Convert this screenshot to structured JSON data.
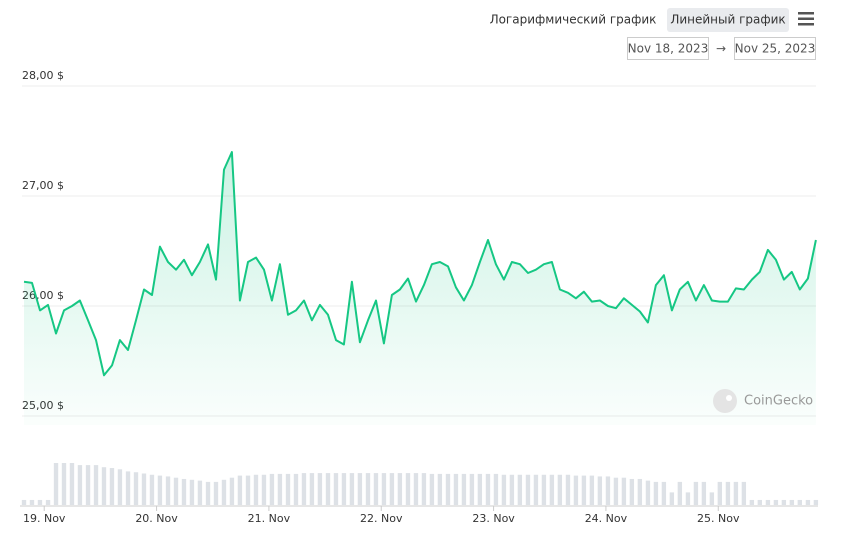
{
  "controls": {
    "log_button": "Логарифмический график",
    "linear_button": "Линейный график",
    "date_from": "Nov 18, 2023",
    "date_arrow": "→",
    "date_to": "Nov 25, 2023"
  },
  "chart_data": {
    "type": "line",
    "watermark": "CoinGecko",
    "x": [
      18.82,
      18.891,
      18.962,
      19.034,
      19.105,
      19.176,
      19.247,
      19.318,
      19.39,
      19.461,
      19.532,
      19.603,
      19.674,
      19.746,
      19.817,
      19.888,
      19.959,
      20.03,
      20.102,
      20.173,
      20.244,
      20.315,
      20.386,
      20.458,
      20.529,
      20.6,
      20.671,
      20.742,
      20.814,
      20.885,
      20.956,
      21.027,
      21.098,
      21.17,
      21.241,
      21.312,
      21.383,
      21.454,
      21.526,
      21.597,
      21.668,
      21.739,
      21.81,
      21.882,
      21.953,
      22.024,
      22.095,
      22.166,
      22.238,
      22.309,
      22.38,
      22.451,
      22.522,
      22.594,
      22.665,
      22.736,
      22.807,
      22.878,
      22.95,
      23.021,
      23.092,
      23.163,
      23.234,
      23.306,
      23.377,
      23.448,
      23.519,
      23.59,
      23.662,
      23.733,
      23.804,
      23.875,
      23.946,
      24.018,
      24.089,
      24.16,
      24.231,
      24.302,
      24.374,
      24.445,
      24.516,
      24.587,
      24.658,
      24.73,
      24.801,
      24.872,
      24.943,
      25.014,
      25.086,
      25.157,
      25.228,
      25.299,
      25.37,
      25.442,
      25.513,
      25.584,
      25.655,
      25.726,
      25.798,
      25.869
    ],
    "series": [
      {
        "color": "#16c784",
        "values": [
          26.22,
          26.21,
          25.96,
          26.01,
          25.75,
          25.96,
          26.0,
          26.05,
          25.87,
          25.69,
          25.37,
          25.46,
          25.69,
          25.6,
          25.87,
          26.15,
          26.1,
          26.54,
          26.4,
          26.33,
          26.42,
          26.28,
          26.4,
          26.56,
          26.24,
          27.24,
          27.4,
          26.05,
          26.4,
          26.44,
          26.33,
          26.05,
          26.38,
          25.92,
          25.96,
          26.05,
          25.87,
          26.01,
          25.92,
          25.69,
          25.65,
          26.22,
          25.67,
          25.87,
          26.05,
          25.66,
          26.1,
          26.15,
          26.25,
          26.04,
          26.19,
          26.38,
          26.4,
          26.36,
          26.17,
          26.05,
          26.19,
          26.4,
          26.6,
          26.38,
          26.24,
          26.4,
          26.38,
          26.3,
          26.33,
          26.38,
          26.4,
          26.15,
          26.12,
          26.07,
          26.13,
          26.04,
          26.05,
          26.0,
          25.98,
          26.07,
          26.01,
          25.95,
          25.85,
          26.19,
          26.28,
          25.96,
          26.15,
          26.22,
          26.05,
          26.19,
          26.05,
          26.04,
          26.04,
          26.16,
          26.15,
          26.24,
          26.31,
          26.51,
          26.42,
          26.24,
          26.31,
          26.15,
          26.25,
          26.6
        ]
      },
      {
        "axis": "y2",
        "type": "bar",
        "color": "#dde1e6",
        "values": [
          12,
          12,
          12,
          12,
          100,
          100,
          100,
          95,
          95,
          95,
          90,
          88,
          85,
          80,
          78,
          75,
          72,
          70,
          68,
          65,
          62,
          60,
          58,
          55,
          55,
          60,
          65,
          70,
          70,
          72,
          72,
          74,
          74,
          74,
          74,
          76,
          76,
          76,
          76,
          76,
          76,
          76,
          76,
          76,
          76,
          76,
          76,
          76,
          76,
          76,
          76,
          74,
          74,
          74,
          74,
          74,
          74,
          74,
          74,
          74,
          72,
          72,
          72,
          72,
          72,
          72,
          72,
          72,
          72,
          70,
          70,
          70,
          68,
          68,
          65,
          65,
          62,
          62,
          58,
          55,
          55,
          30,
          55,
          30,
          55,
          55,
          30,
          55,
          55,
          55,
          55,
          12,
          12,
          12,
          12,
          12,
          12,
          12,
          12,
          12
        ]
      }
    ],
    "xlim": [
      18.82,
      25.87
    ],
    "xticks": [
      {
        "value": 19,
        "label": "19. Nov"
      },
      {
        "value": 20,
        "label": "20. Nov"
      },
      {
        "value": 21,
        "label": "21. Nov"
      },
      {
        "value": 22,
        "label": "22. Nov"
      },
      {
        "value": 23,
        "label": "23. Nov"
      },
      {
        "value": 24,
        "label": "24. Nov"
      },
      {
        "value": 25,
        "label": "25. Nov"
      }
    ],
    "ylim": [
      25,
      28
    ],
    "yticks": [
      {
        "value": 25,
        "label": "25,00 $"
      },
      {
        "value": 26,
        "label": "26,00 $"
      },
      {
        "value": 27,
        "label": "27,00 $"
      },
      {
        "value": 28,
        "label": "28,00 $"
      }
    ],
    "y2lim": [
      0,
      100
    ],
    "grid": true
  }
}
